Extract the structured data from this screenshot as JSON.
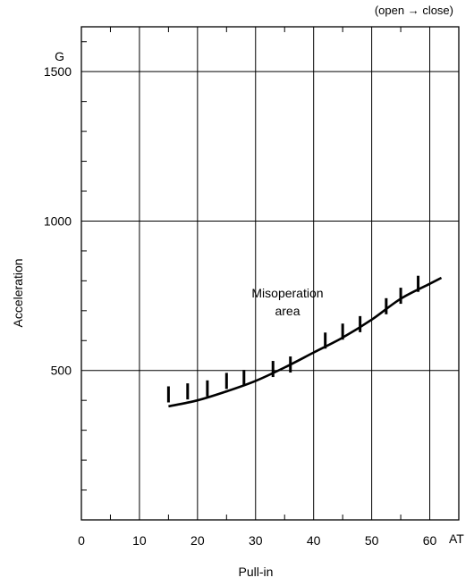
{
  "chart_data": {
    "type": "line",
    "title": "",
    "top_note": "(open → close)",
    "xlabel": "Pull-in",
    "x_unit": "AT",
    "ylabel": "Acceleration",
    "y_unit": "G",
    "xlim": [
      0,
      65
    ],
    "ylim": [
      0,
      1650
    ],
    "x_ticks": [
      0,
      10,
      20,
      30,
      40,
      50,
      60
    ],
    "y_ticks": [
      500,
      1000,
      1500
    ],
    "grid": true,
    "series": [
      {
        "x": [
          15,
          20,
          25,
          30,
          35,
          40,
          45,
          50,
          55,
          60,
          62
        ],
        "y": [
          380,
          400,
          430,
          465,
          510,
          560,
          610,
          670,
          740,
          790,
          810
        ]
      }
    ],
    "hatch_marks": {
      "x": [
        15,
        18.3,
        21.7,
        25,
        28,
        33,
        36,
        42,
        45,
        48,
        52.5,
        55,
        58
      ],
      "y": [
        420,
        430,
        440,
        465,
        475,
        505,
        520,
        600,
        630,
        655,
        715,
        750,
        790
      ]
    },
    "annotation": {
      "line1": "Misoperation",
      "line2": "area",
      "x": 35.5,
      "y": 745
    }
  }
}
